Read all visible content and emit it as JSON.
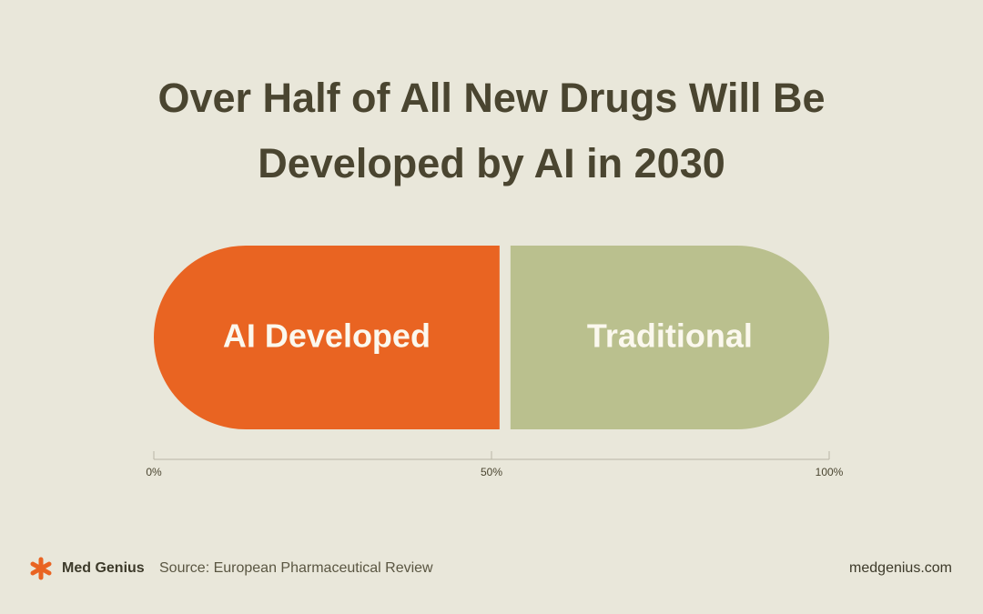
{
  "chart_data": {
    "type": "stacked-bar",
    "title": "Over Half of All New Drugs Will Be Developed by AI in 2030",
    "categories": [
      null
    ],
    "series": [
      {
        "name": "AI Developed",
        "color": "#e96422",
        "values": [
          52
        ]
      },
      {
        "name": "Traditional",
        "color": "#bac08e",
        "values": [
          48
        ]
      }
    ],
    "xlim": [
      0,
      100
    ],
    "xticks": [
      {
        "value": 0,
        "label": "0%"
      },
      {
        "value": 50,
        "label": "50%"
      },
      {
        "value": 100,
        "label": "100%"
      }
    ]
  },
  "footer": {
    "brand": "Med Genius",
    "source": "Source: European Pharmaceutical Review",
    "website": "medgenius.com"
  }
}
